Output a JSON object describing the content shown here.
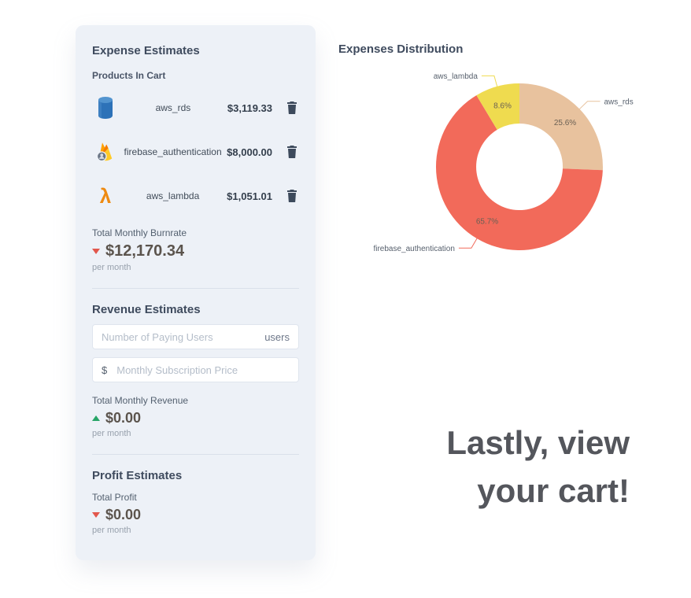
{
  "panel": {
    "expense_heading": "Expense Estimates",
    "products_label": "Products In Cart",
    "cart_items": [
      {
        "name": "aws_rds",
        "price": "$3,119.33"
      },
      {
        "name": "firebase_authentication",
        "price": "$8,000.00"
      },
      {
        "name": "aws_lambda",
        "price": "$1,051.01"
      }
    ],
    "burnrate": {
      "label": "Total Monthly Burnrate",
      "value": "$12,170.34",
      "period": "per month"
    },
    "revenue_heading": "Revenue Estimates",
    "users_input": {
      "placeholder": "Number of Paying Users",
      "suffix": "users"
    },
    "price_input": {
      "prefix": "$",
      "placeholder": "Monthly Subscription Price"
    },
    "revenue": {
      "label": "Total Monthly Revenue",
      "value": "$0.00",
      "period": "per month"
    },
    "profit_heading": "Profit Estimates",
    "profit": {
      "label": "Total Profit",
      "value": "$0.00",
      "period": "per month"
    }
  },
  "chart_data": {
    "type": "pie",
    "title": "Expenses Distribution",
    "donut": true,
    "start_angle": "top",
    "direction": "clockwise",
    "slices": [
      {
        "name": "aws_rds",
        "value": 3119.33,
        "percent": 25.6,
        "percent_label": "25.6%",
        "color": "#e8c29e"
      },
      {
        "name": "firebase_authentication",
        "value": 8000.0,
        "percent": 65.7,
        "percent_label": "65.7%",
        "color": "#f26a5a"
      },
      {
        "name": "aws_lambda",
        "value": 1051.01,
        "percent": 8.6,
        "percent_label": "8.6%",
        "color": "#efdb4f"
      }
    ]
  },
  "tagline": {
    "line1": "Lastly, view",
    "line2": "your cart!"
  },
  "colors": {
    "accent_red": "#e2574c",
    "accent_green": "#27a567",
    "panel_bg": "#edf1f7"
  }
}
